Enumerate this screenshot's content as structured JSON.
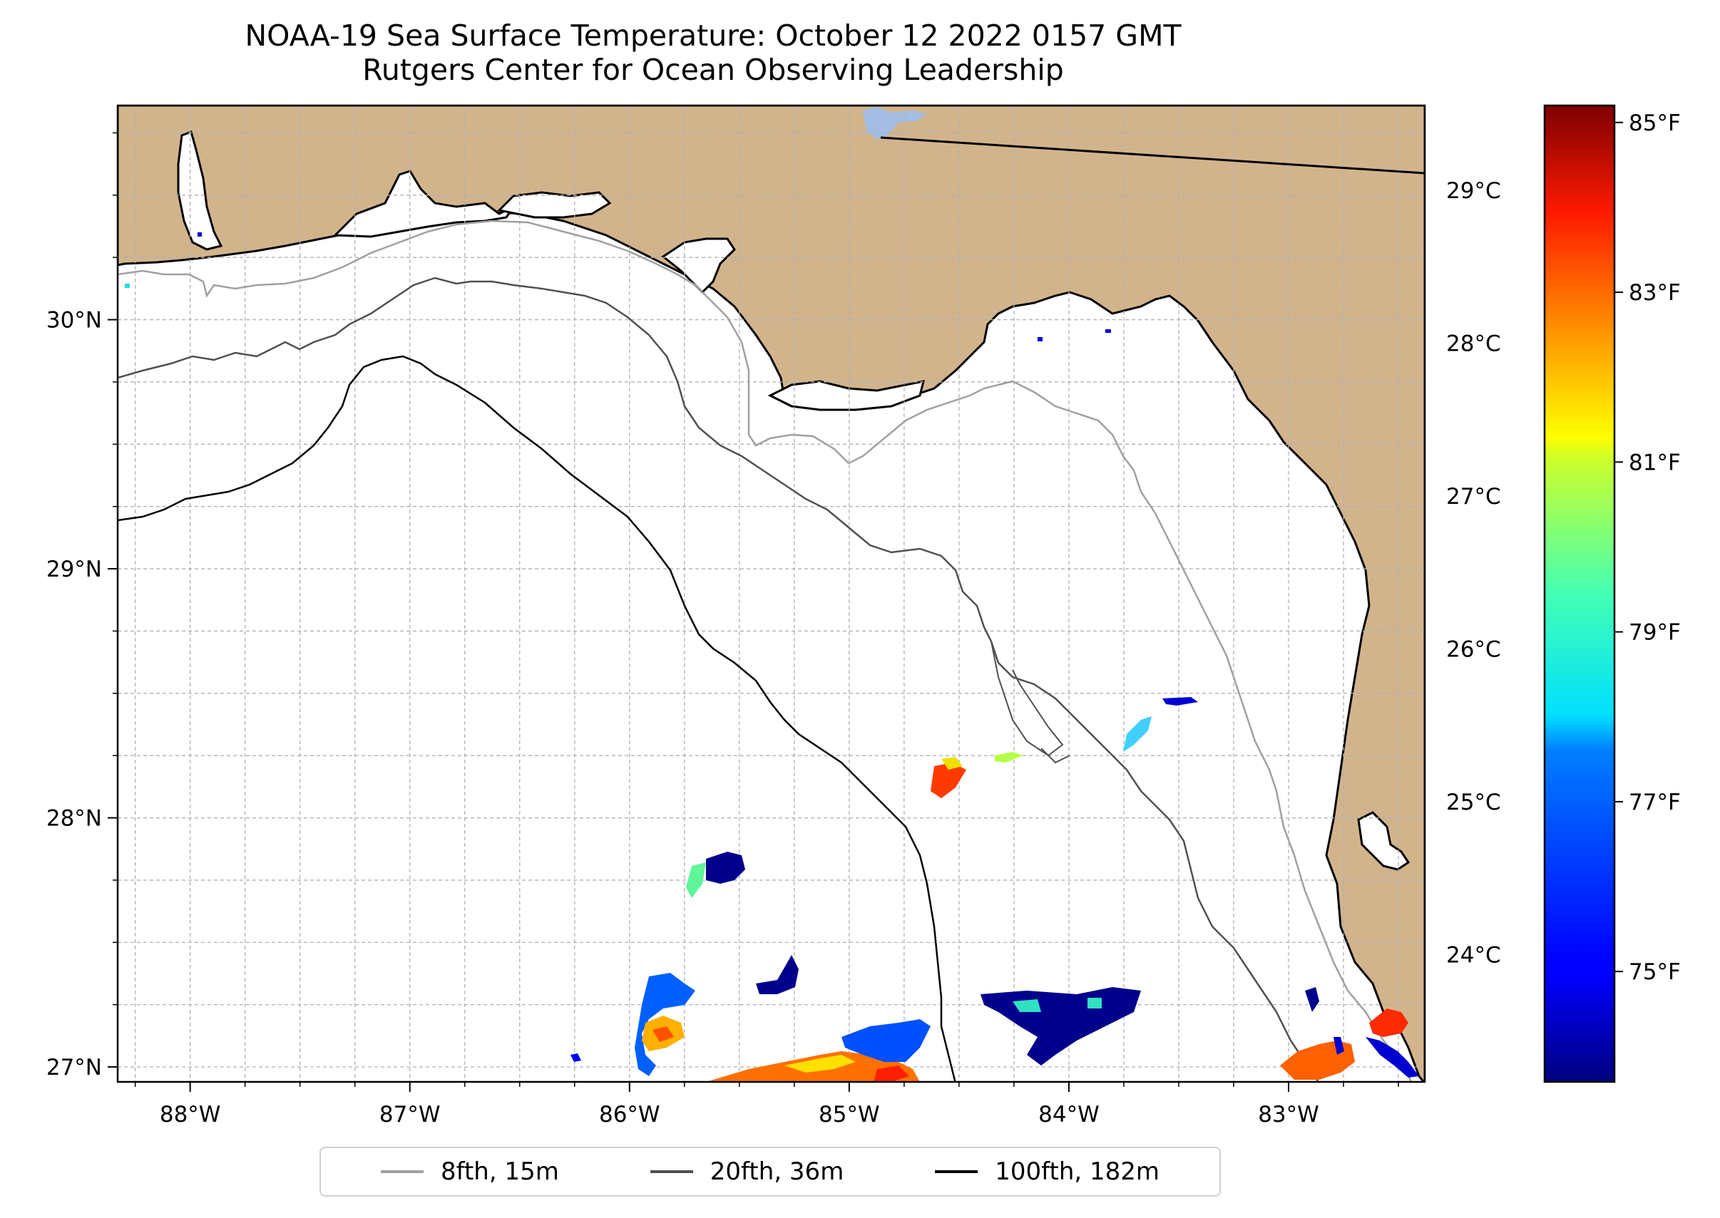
{
  "title": {
    "line1": "NOAA-19 Sea Surface Temperature: October 12 2022 0157 GMT",
    "line2": "Rutgers Center for Ocean Observing Leadership"
  },
  "map": {
    "lon_range": [
      -88.33,
      -82.38
    ],
    "lat_range": [
      26.94,
      30.86
    ],
    "lon_ticks": [
      {
        "value": -88,
        "label": "88°W"
      },
      {
        "value": -87,
        "label": "87°W"
      },
      {
        "value": -86,
        "label": "86°W"
      },
      {
        "value": -85,
        "label": "85°W"
      },
      {
        "value": -84,
        "label": "84°W"
      },
      {
        "value": -83,
        "label": "83°W"
      }
    ],
    "lat_ticks": [
      {
        "value": 27,
        "label": "27°N"
      },
      {
        "value": 28,
        "label": "28°N"
      },
      {
        "value": 29,
        "label": "29°N"
      },
      {
        "value": 30,
        "label": "30°N"
      }
    ],
    "colors": {
      "land": "#d2b48c",
      "ocean": "#ffffff",
      "grid": "#b0b0b0",
      "lake": "#a3bde3"
    }
  },
  "colorbar": {
    "celsius_labels": [
      {
        "value": 24,
        "label": "24°C"
      },
      {
        "value": 25,
        "label": "25°C"
      },
      {
        "value": 26,
        "label": "26°C"
      },
      {
        "value": 27,
        "label": "27°C"
      },
      {
        "value": 28,
        "label": "28°C"
      },
      {
        "value": 29,
        "label": "29°C"
      }
    ],
    "fahrenheit_labels": [
      {
        "value": 75,
        "label": "75°F"
      },
      {
        "value": 77,
        "label": "77°F"
      },
      {
        "value": 79,
        "label": "79°F"
      },
      {
        "value": 81,
        "label": "81°F"
      },
      {
        "value": 83,
        "label": "83°F"
      },
      {
        "value": 85,
        "label": "85°F"
      }
    ],
    "range_f": [
      73.7,
      85.2
    ],
    "colormap": "jet"
  },
  "legend": {
    "items": [
      {
        "label": "8fth, 15m",
        "color": "#a0a0a0"
      },
      {
        "label": "20fth, 36m",
        "color": "#505050"
      },
      {
        "label": "100fth, 182m",
        "color": "#000000"
      }
    ]
  }
}
